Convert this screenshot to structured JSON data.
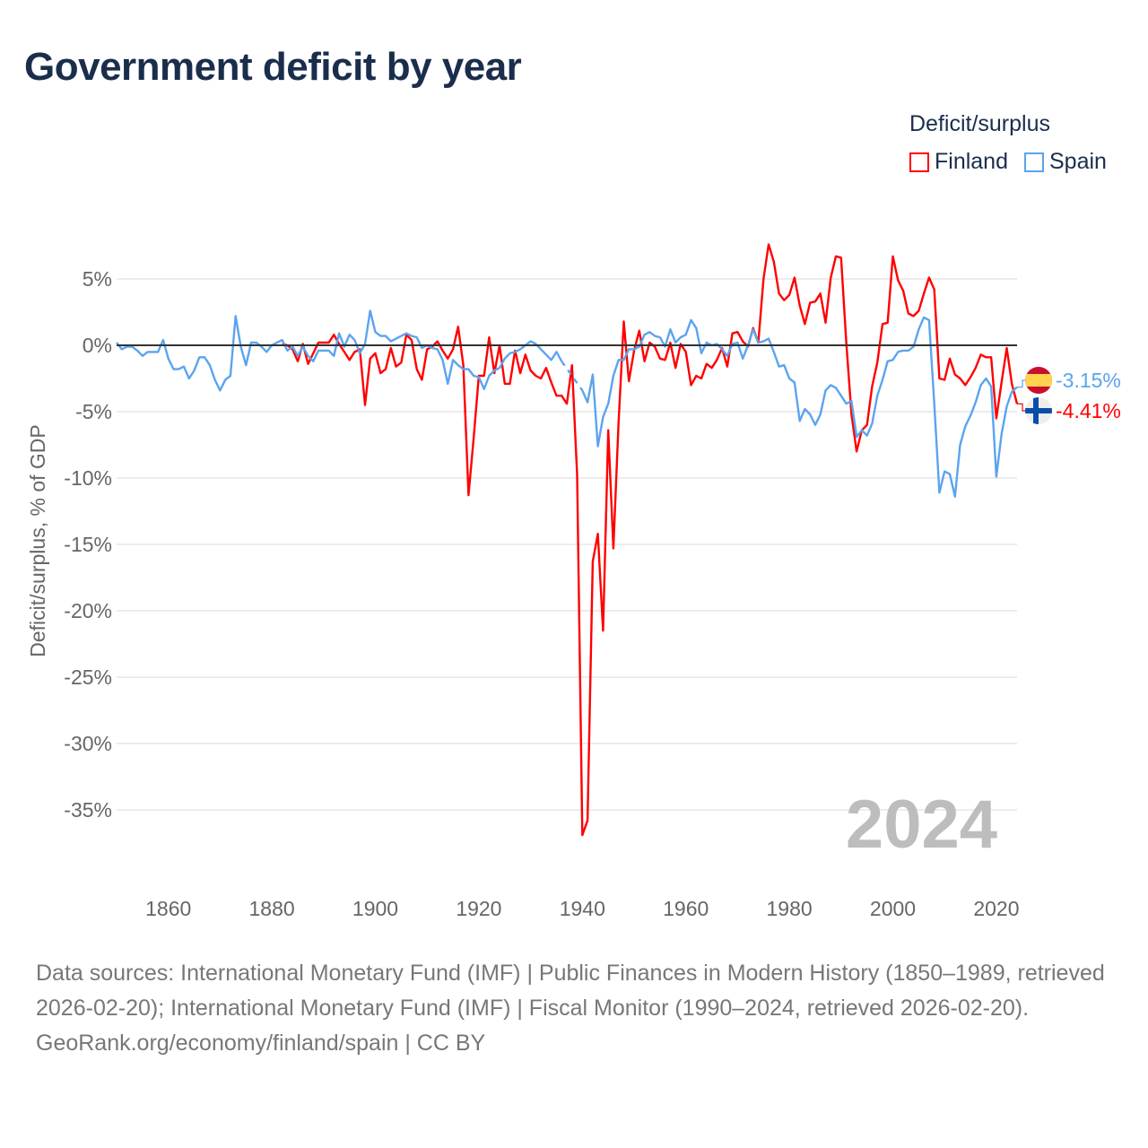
{
  "title": "Government deficit by year",
  "legend": {
    "title": "Deficit/surplus",
    "items": [
      {
        "name": "Finland",
        "color": "#ff0000"
      },
      {
        "name": "Spain",
        "color": "#5ba4ee"
      }
    ]
  },
  "footer": {
    "sources": "Data sources: International Monetary Fund (IMF) | Public Finances in Modern History (1850–1989, retrieved 2026-02-20); International Monetary Fund (IMF) | Fiscal Monitor (1990–2024, retrieved 2026-02-20).",
    "credit": "GeoRank.org/economy/finland/spain | CC BY"
  },
  "chart_data": {
    "type": "line",
    "title": "Government deficit by year",
    "xlabel": "",
    "ylabel": "Deficit/surplus, % of GDP",
    "xlim": [
      1850,
      2024
    ],
    "ylim": [
      -38,
      8
    ],
    "xticks": [
      1860,
      1880,
      1900,
      1920,
      1940,
      1960,
      1980,
      2000,
      2020
    ],
    "xtick_labels": [
      "1860",
      "1880",
      "1900",
      "1920",
      "1940",
      "1960",
      "1980",
      "2000",
      "2020"
    ],
    "yticks": [
      5,
      0,
      -5,
      -10,
      -15,
      -20,
      -25,
      -30,
      -35
    ],
    "ytick_labels": [
      "5%",
      "0%",
      "-5%",
      "-10%",
      "-15%",
      "-20%",
      "-25%",
      "-30%",
      "-35%"
    ],
    "grid": true,
    "legend_position": "top-right",
    "current_year_label": "2024",
    "end_labels": {
      "Spain": "-3.15%",
      "Finland": "-4.41%"
    },
    "series": [
      {
        "name": "Spain",
        "color": "#5ba4ee",
        "start": 1850,
        "values": [
          0.2,
          -0.3,
          -0.1,
          -0.1,
          -0.4,
          -0.8,
          -0.5,
          -0.5,
          -0.5,
          0.4,
          -1.0,
          -1.8,
          -1.8,
          -1.6,
          -2.5,
          -1.9,
          -0.9,
          -0.9,
          -1.5,
          -2.6,
          -3.4,
          -2.6,
          -2.3,
          2.2,
          -0.1,
          -1.5,
          0.2,
          0.2,
          -0.1,
          -0.5,
          0.0,
          0.2,
          0.4,
          -0.4,
          -0.1,
          -0.8,
          -0.1,
          -0.8,
          -1.2,
          -0.4,
          -0.4,
          -0.4,
          -0.8,
          0.9,
          -0.1,
          0.8,
          0.4,
          -0.6,
          0.1,
          2.6,
          1.0,
          0.7,
          0.7,
          0.3,
          0.5,
          0.7,
          0.9,
          0.7,
          0.6,
          -0.2,
          0.0,
          -0.2,
          -0.3,
          -1.1,
          -2.9,
          -1.1,
          -1.5,
          -1.8,
          -1.8,
          -2.3,
          -2.4,
          -3.3,
          -2.3,
          -1.9,
          -1.7,
          -1.0,
          -0.6,
          -0.5,
          -0.3,
          0.0,
          0.3,
          0.1,
          -0.3,
          -0.7,
          -1.1,
          -0.5,
          -1.2,
          null,
          null,
          null,
          -3.4,
          -4.3,
          -2.2,
          -7.6,
          -5.4,
          -4.4,
          -2.3,
          -1.1,
          -1.1,
          -0.3,
          -0.3,
          -0.1,
          0.8,
          1.0,
          0.7,
          0.6,
          -0.1,
          1.2,
          0.2,
          0.6,
          0.8,
          1.9,
          1.3,
          -0.6,
          0.2,
          0.0,
          0.1,
          -0.3,
          -0.8,
          0.1,
          0.2,
          -1.0,
          0.0,
          1.2,
          0.2,
          0.3,
          0.5,
          -0.5,
          -1.6,
          -1.5,
          -2.5,
          -2.8,
          -5.7,
          -4.8,
          -5.2,
          -6.0,
          -5.2,
          -3.4,
          -3.0,
          -3.2,
          -3.8,
          -4.4,
          -4.2,
          -6.9,
          -6.4,
          -6.8,
          -5.9,
          -3.8,
          -2.6,
          -1.2,
          -1.1,
          -0.5,
          -0.4,
          -0.4,
          -0.1,
          1.2,
          2.1,
          1.9,
          -4.4,
          -11.1,
          -9.5,
          -9.7,
          -11.4,
          -7.5,
          -6.1,
          -5.3,
          -4.3,
          -3.0,
          -2.5,
          -3.1,
          -9.9,
          -6.7,
          -4.6,
          -3.5,
          -3.15
        ]
      },
      {
        "name": "Finland",
        "color": "#ff0000",
        "start": 1882,
        "values": [
          0.1,
          0.0,
          -0.3,
          -1.2,
          0.1,
          -1.4,
          -0.6,
          0.2,
          0.2,
          0.2,
          0.8,
          0.1,
          -0.5,
          -1.1,
          -0.5,
          -0.3,
          -4.5,
          -1.0,
          -0.6,
          -2.1,
          -1.8,
          -0.2,
          -1.6,
          -1.3,
          0.8,
          0.4,
          -1.8,
          -2.6,
          -0.3,
          -0.1,
          0.3,
          -0.4,
          -1.0,
          -0.3,
          1.4,
          -1.5,
          -11.3,
          -7.0,
          -2.3,
          -2.3,
          0.6,
          -2.1,
          0.0,
          -2.9,
          -2.9,
          -0.4,
          -2.1,
          -0.7,
          -1.9,
          -2.3,
          -2.5,
          -1.7,
          -2.8,
          -3.8,
          -3.8,
          -4.4,
          -1.5,
          -9.8,
          -36.9,
          -35.8,
          -16.3,
          -14.2,
          -21.5,
          -6.4,
          -15.3,
          -5.8,
          1.8,
          -2.7,
          -0.4,
          1.1,
          -1.2,
          0.2,
          -0.1,
          -1.0,
          -1.1,
          0.2,
          -1.7,
          0.1,
          -0.5,
          -3.0,
          -2.3,
          -2.5,
          -1.4,
          -1.7,
          -1.1,
          -0.2,
          -1.6,
          0.9,
          1.0,
          0.3,
          -0.1,
          1.3,
          0.2,
          5.0,
          7.6,
          6.3,
          3.9,
          3.4,
          3.8,
          5.1,
          3.0,
          1.6,
          3.2,
          3.3,
          3.9,
          1.7,
          5.1,
          6.7,
          6.6,
          0.2,
          -5.2,
          -8.0,
          -6.4,
          -6.0,
          -3.1,
          -1.3,
          1.6,
          1.7,
          6.7,
          4.9,
          4.1,
          2.4,
          2.2,
          2.6,
          3.9,
          5.1,
          4.2,
          -2.5,
          -2.6,
          -1.0,
          -2.2,
          -2.5,
          -3.0,
          -2.4,
          -1.7,
          -0.7,
          -0.9,
          -0.9,
          -5.5,
          -2.8,
          -0.2,
          -2.9,
          -4.41
        ]
      }
    ]
  }
}
